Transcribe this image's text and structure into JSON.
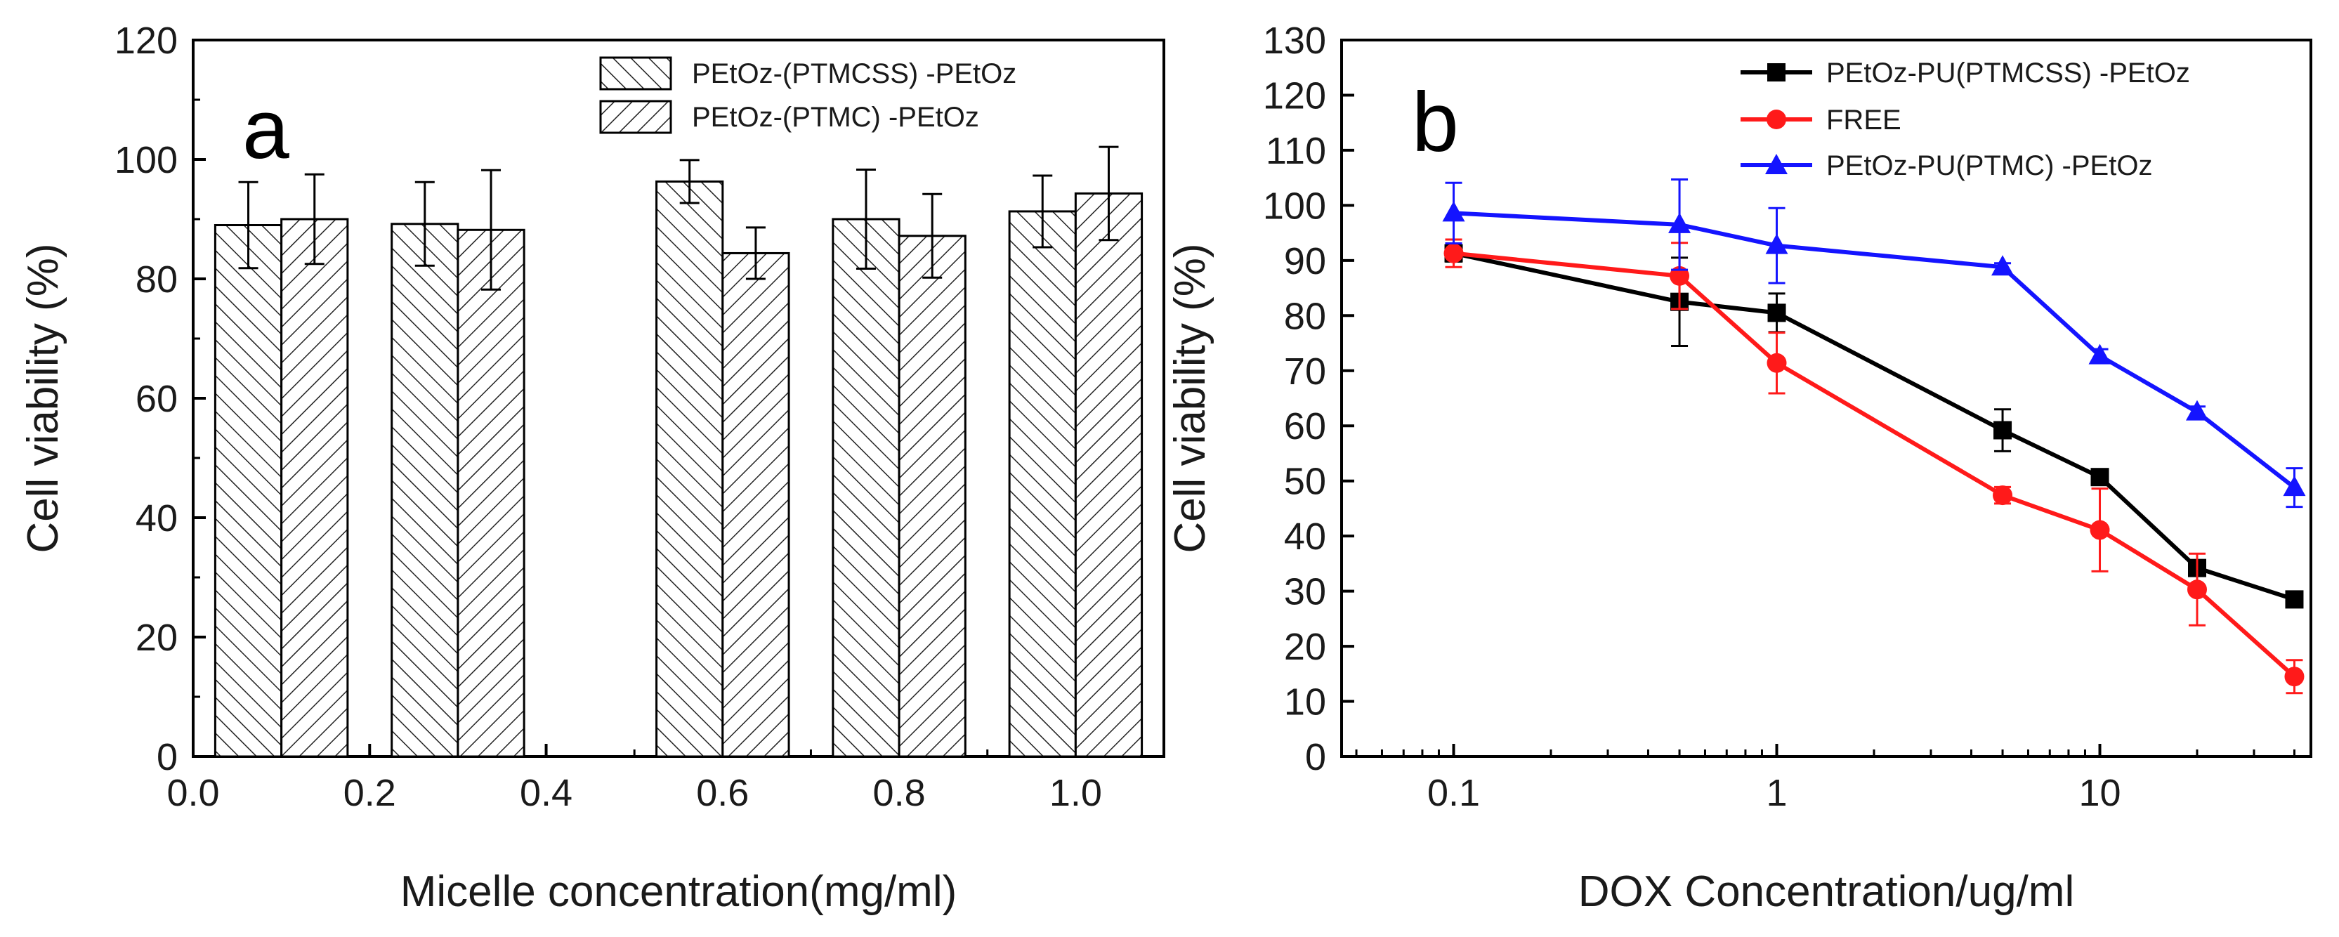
{
  "chart_data": [
    {
      "type": "bar",
      "panel_label": "a",
      "xlabel": "Micelle concentration(mg/ml)",
      "ylabel": "Cell viability (%)",
      "xlim": [
        0.0,
        1.1
      ],
      "ylim": [
        0,
        120
      ],
      "x_ticks": [
        "0.0",
        "0.2",
        "0.4",
        "0.6",
        "0.8",
        "1.0"
      ],
      "y_ticks": [
        "0",
        "20",
        "40",
        "60",
        "80",
        "100",
        "120"
      ],
      "legend_position": "top-right",
      "x": [
        0.1,
        0.3,
        0.6,
        0.8,
        1.0
      ],
      "series": [
        {
          "name": "PEtOz-(PTMCSS) -PEtOz",
          "hatch": "backslash",
          "values": [
            89,
            89.2,
            96.3,
            90,
            91.3
          ],
          "errors": [
            7.2,
            7,
            3.6,
            8.3,
            6
          ]
        },
        {
          "name": "PEtOz-(PTMC) -PEtOz",
          "hatch": "slash",
          "values": [
            90,
            88.2,
            84.3,
            87.2,
            94.3
          ],
          "errors": [
            7.5,
            10,
            4.3,
            7,
            7.8
          ]
        }
      ]
    },
    {
      "type": "line",
      "panel_label": "b",
      "xlabel": "DOX Concentration/ug/ml",
      "ylabel": "Cell  viability (%)",
      "x_scale": "log",
      "xlim": [
        0.045,
        45
      ],
      "ylim": [
        0,
        130
      ],
      "x_ticks": [
        "0.1",
        "1",
        "10"
      ],
      "y_ticks": [
        "0",
        "10",
        "20",
        "30",
        "40",
        "50",
        "60",
        "70",
        "80",
        "90",
        "100",
        "110",
        "120",
        "130"
      ],
      "legend_position": "top-right",
      "x": [
        0.1,
        0.5,
        1,
        5,
        10,
        20,
        40
      ],
      "series": [
        {
          "name": "PEtOz-PU(PTMCSS) -PEtOz",
          "color": "#000000",
          "marker": "square",
          "values": [
            91.3,
            82.5,
            80.5,
            59.2,
            50.7,
            34.2,
            28.5
          ],
          "errors": [
            1.5,
            8,
            3.5,
            3.8,
            0.8,
            1.2,
            1
          ]
        },
        {
          "name": "FREE",
          "color": "#ff1a1a",
          "marker": "circle",
          "values": [
            91.3,
            87.2,
            71.4,
            47.4,
            41.1,
            30.3,
            14.5
          ],
          "errors": [
            2.5,
            6,
            5.5,
            1.5,
            7.5,
            6.5,
            3
          ]
        },
        {
          "name": "PEtOz-PU(PTMC) -PEtOz",
          "color": "#1414ff",
          "marker": "triangle",
          "values": [
            98.6,
            96.5,
            92.7,
            88.8,
            72.7,
            62.5,
            48.8
          ],
          "errors": [
            5.5,
            8.2,
            6.8,
            0.7,
            1.2,
            1,
            3.5
          ]
        }
      ]
    }
  ]
}
